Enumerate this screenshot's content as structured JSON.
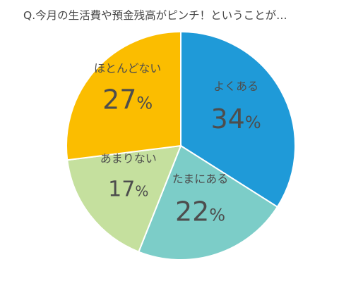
{
  "chart_data": {
    "type": "pie",
    "title": "Q.今月の生活費や預金残高がピンチ！ということが…",
    "categories": [
      "よくある",
      "たまにある",
      "あまりない",
      "ほとんどない"
    ],
    "values": [
      34,
      22,
      17,
      27
    ],
    "value_labels": [
      "34",
      "22",
      "17",
      "27"
    ],
    "unit": "%",
    "colors": [
      "#1f9ad8",
      "#7ccdc8",
      "#c5e09e",
      "#fbbd00"
    ],
    "start_angle_deg": 0,
    "direction": "clockwise"
  }
}
